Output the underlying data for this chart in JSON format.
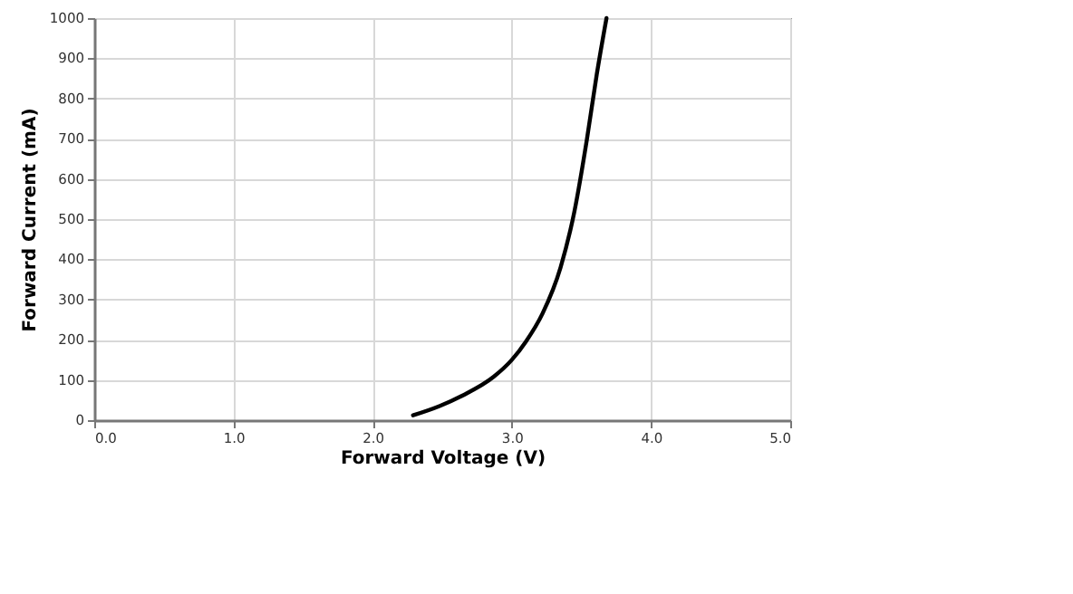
{
  "chart_data": {
    "type": "line",
    "xlabel": "Forward Voltage (V)",
    "ylabel": "Forward Current (mA)",
    "x": [
      2.29,
      2.48,
      2.65,
      2.87,
      3.0,
      3.1,
      3.22,
      3.35,
      3.45,
      3.54,
      3.61,
      3.68
    ],
    "series": [
      {
        "color": "#000000",
        "values": [
          12,
          35,
          62,
          108,
          150,
          195,
          265,
          380,
          520,
          700,
          860,
          1000
        ]
      }
    ],
    "xlim": [
      0,
      5
    ],
    "xticks": [
      {
        "value": 0,
        "label": "0.0"
      },
      {
        "value": 1,
        "label": "1.0"
      },
      {
        "value": 2,
        "label": "2.0"
      },
      {
        "value": 3,
        "label": "3.0"
      },
      {
        "value": 4,
        "label": "4.0"
      },
      {
        "value": 5,
        "label": "5.0"
      }
    ],
    "ylim": [
      0,
      1000
    ],
    "yticks": [
      0,
      100,
      200,
      300,
      400,
      500,
      600,
      700,
      800,
      900,
      1000
    ],
    "grid": true,
    "marker": "none",
    "line_style": "solid"
  }
}
